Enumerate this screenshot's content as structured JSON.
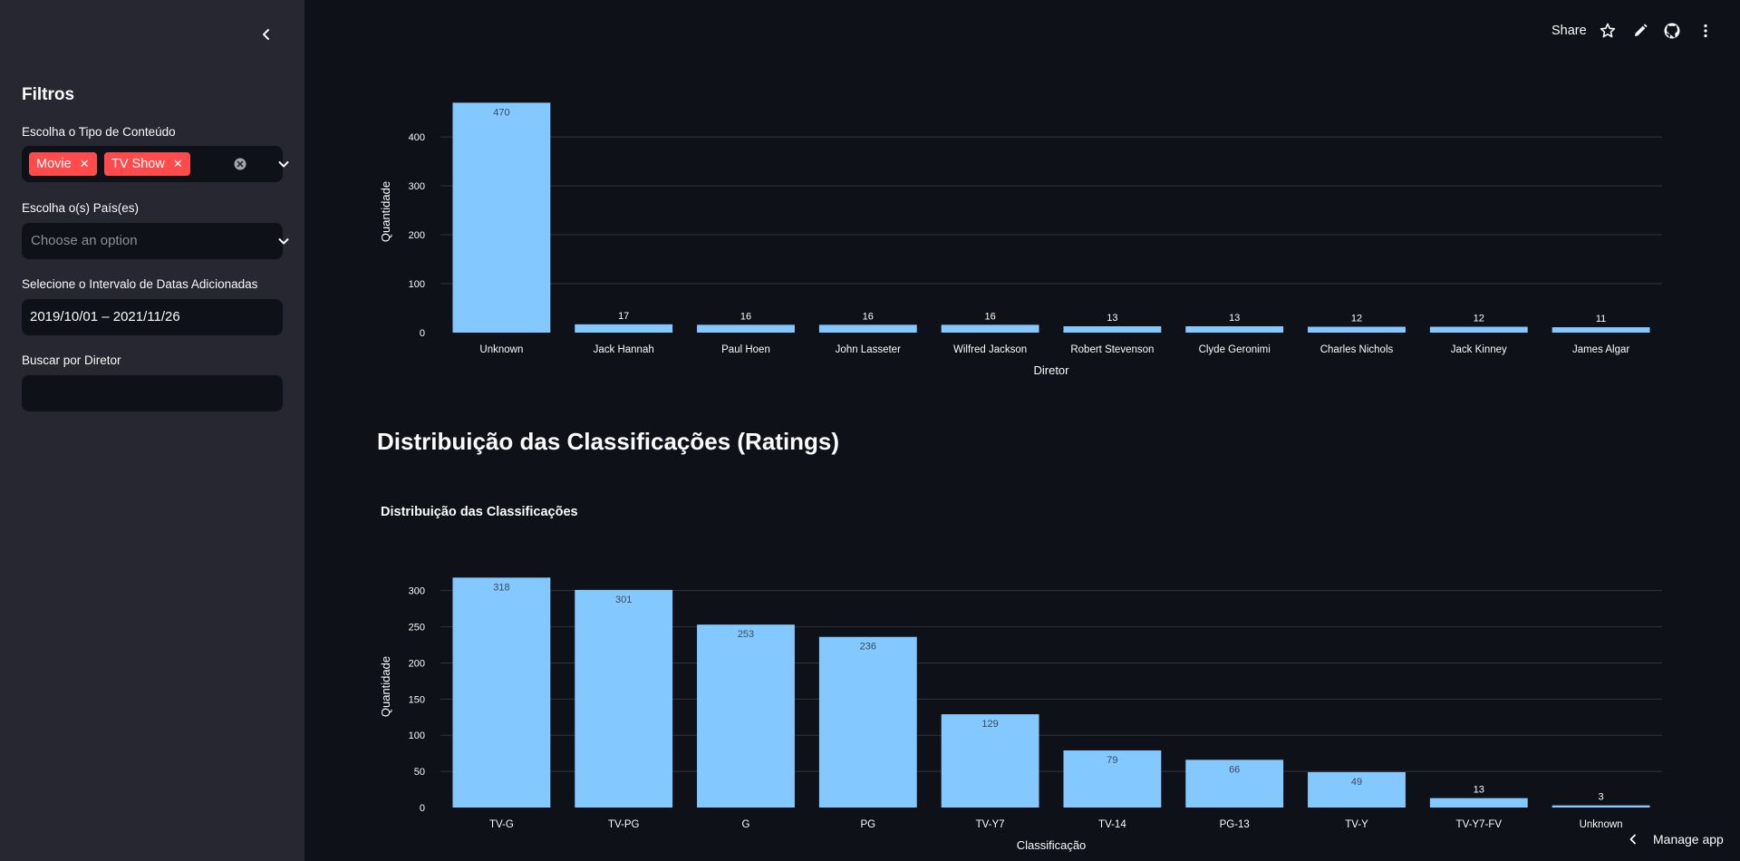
{
  "sidebar": {
    "title": "Filtros",
    "content_type_label": "Escolha o Tipo de Conteúdo",
    "content_type_tags": [
      "Movie",
      "TV Show"
    ],
    "country_label": "Escolha o(s) País(es)",
    "country_placeholder": "Choose an option",
    "date_label": "Selecione o Intervalo de Datas Adicionadas",
    "date_value": "2019/10/01 – 2021/11/26",
    "director_label": "Buscar por Diretor",
    "director_value": ""
  },
  "toolbar": {
    "share_label": "Share",
    "icons": [
      "star-icon",
      "pencil-icon",
      "github-icon",
      "kebab-menu-icon"
    ]
  },
  "main": {
    "section_title": "Distribuição das Classificações (Ratings)",
    "chart2_title": "Distribuição das Classificações",
    "manage_app_label": "Manage app"
  },
  "colors": {
    "bar": "#83c9ff",
    "tag": "#ff4b4b",
    "sidebar_bg": "#262730",
    "main_bg": "#0e1117"
  },
  "chart_data": [
    {
      "type": "bar",
      "title": "",
      "categories": [
        "Unknown",
        "Jack Hannah",
        "Paul Hoen",
        "John Lasseter",
        "Wilfred Jackson",
        "Robert Stevenson",
        "Clyde Geronimi",
        "Charles Nichols",
        "Jack Kinney",
        "James Algar"
      ],
      "values": [
        470,
        17,
        16,
        16,
        16,
        13,
        13,
        12,
        12,
        11
      ],
      "xlabel": "Diretor",
      "ylabel": "Quantidade",
      "yticks": [
        0,
        100,
        200,
        300,
        400
      ],
      "ylim": [
        0,
        494.7
      ],
      "grid": true
    },
    {
      "type": "bar",
      "title": "Distribuição das Classificações",
      "categories": [
        "TV-G",
        "TV-PG",
        "G",
        "PG",
        "TV-Y7",
        "TV-14",
        "PG-13",
        "TV-Y",
        "TV-Y7-FV",
        "Unknown"
      ],
      "values": [
        318,
        301,
        253,
        236,
        129,
        79,
        66,
        49,
        13,
        3
      ],
      "xlabel": "Classificação",
      "ylabel": "Quantidade",
      "yticks": [
        0,
        50,
        100,
        150,
        200,
        250,
        300
      ],
      "ylim": [
        0,
        334.7
      ],
      "grid": true
    }
  ]
}
